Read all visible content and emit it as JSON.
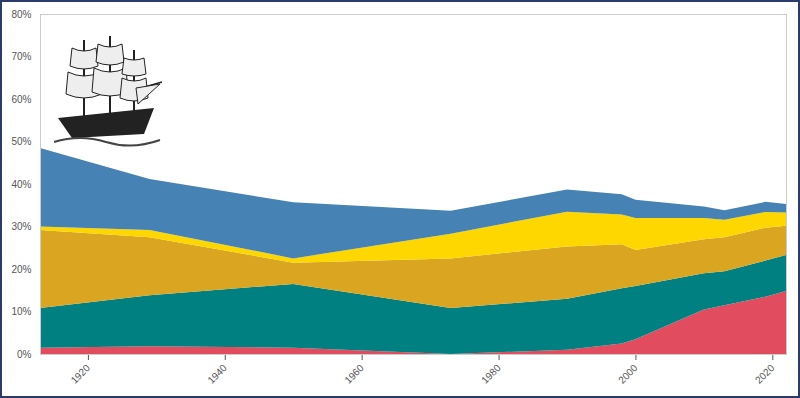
{
  "chart_data": {
    "type": "area",
    "stacked": true,
    "grid": false,
    "x": [
      1913,
      1929,
      1950,
      1973,
      1990,
      1998,
      2000,
      2010,
      2013,
      2019,
      2022
    ],
    "series": [
      {
        "color": "#e14d5e",
        "values": [
          1.5,
          1.8,
          1.5,
          0,
          1,
          2.5,
          3.5,
          10.5,
          11.5,
          13.5,
          14.8
        ]
      },
      {
        "color": "#008080",
        "values": [
          9.3,
          12,
          15,
          10.8,
          12,
          13,
          12.5,
          8.5,
          8,
          8.5,
          8.5
        ]
      },
      {
        "color": "#daa520",
        "values": [
          18.4,
          13.7,
          5,
          11.7,
          12.3,
          10.3,
          8.5,
          8,
          8,
          7.7,
          6.9
        ]
      },
      {
        "color": "#ffd700",
        "values": [
          0.8,
          1.7,
          1,
          5.8,
          8.2,
          7,
          7.5,
          5,
          4.1,
          3.7,
          3.1
        ]
      },
      {
        "color": "#4682b4",
        "values": [
          18.5,
          12,
          13.2,
          5.4,
          5.2,
          4.8,
          4.3,
          2.7,
          2.2,
          2.4,
          2
        ]
      }
    ],
    "xlim": [
      1913,
      2022
    ],
    "xticks": [
      1920,
      1940,
      1960,
      1980,
      2000,
      2020
    ],
    "ylim": [
      0,
      80
    ],
    "yticks": [
      {
        "value": 0,
        "label": "0%"
      },
      {
        "value": 10,
        "label": "10%"
      },
      {
        "value": 20,
        "label": "20%"
      },
      {
        "value": 30,
        "label": "30%"
      },
      {
        "value": 40,
        "label": "40%"
      },
      {
        "value": 50,
        "label": "50%"
      },
      {
        "value": 60,
        "label": "60%"
      },
      {
        "value": 70,
        "label": "70%"
      },
      {
        "value": 80,
        "label": "80%"
      }
    ]
  }
}
